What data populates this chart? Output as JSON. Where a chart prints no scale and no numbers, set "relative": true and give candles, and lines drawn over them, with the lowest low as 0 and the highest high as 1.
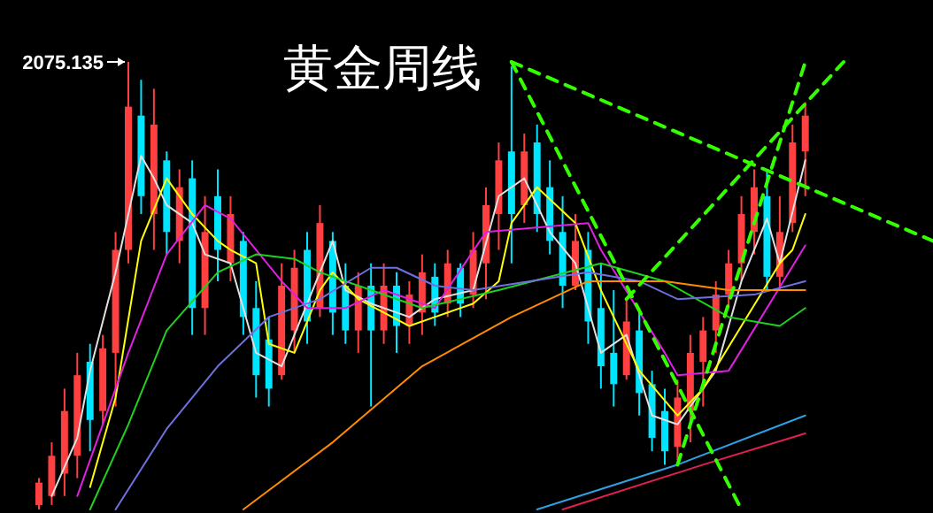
{
  "chart_data": {
    "type": "candlestick",
    "title": "黄金周线",
    "relative": true,
    "categories": [
      null,
      null,
      null,
      null,
      null,
      null,
      null,
      null,
      null,
      null,
      null,
      null,
      null,
      null,
      null,
      null,
      null,
      null,
      null,
      null,
      null,
      null,
      null,
      null,
      null,
      null,
      null,
      null,
      null,
      null,
      null,
      null,
      null,
      null,
      null,
      null,
      null,
      null,
      null,
      null,
      null,
      null,
      null,
      null,
      null,
      null,
      null,
      null,
      null,
      null,
      null,
      null,
      null,
      null,
      null,
      null,
      null,
      null,
      null,
      null,
      null,
      null,
      null,
      null,
      null,
      null,
      null,
      null,
      null,
      null,
      null
    ],
    "ohlc": [
      [
        0.01,
        0.07,
        0,
        0.06
      ],
      [
        0.03,
        0.15,
        0.01,
        0.12
      ],
      [
        0.08,
        0.27,
        0.03,
        0.22
      ],
      [
        0.12,
        0.35,
        0.07,
        0.3
      ],
      [
        0.33,
        0.37,
        0.13,
        0.2
      ],
      [
        0.22,
        0.39,
        0.19,
        0.36
      ],
      [
        0.35,
        0.62,
        0.23,
        0.58
      ],
      [
        0.58,
        1,
        0.55,
        0.9
      ],
      [
        0.88,
        0.96,
        0.66,
        0.7
      ],
      [
        0.66,
        0.94,
        0.58,
        0.86
      ],
      [
        0.78,
        0.8,
        0.57,
        0.62
      ],
      [
        0.6,
        0.76,
        0.55,
        0.72
      ],
      [
        0.74,
        0.78,
        0.39,
        0.45
      ],
      [
        0.45,
        0.7,
        0.39,
        0.62
      ],
      [
        0.7,
        0.76,
        0.51,
        0.58
      ],
      [
        0.55,
        0.7,
        0.51,
        0.66
      ],
      [
        0.6,
        0.62,
        0.39,
        0.43
      ],
      [
        0.45,
        0.51,
        0.25,
        0.3
      ],
      [
        0.38,
        0.43,
        0.23,
        0.27
      ],
      [
        0.3,
        0.55,
        0.29,
        0.5
      ],
      [
        0.4,
        0.58,
        0.35,
        0.54
      ],
      [
        0.58,
        0.62,
        0.37,
        0.42
      ],
      [
        0.45,
        0.68,
        0.43,
        0.64
      ],
      [
        0.6,
        0.62,
        0.39,
        0.44
      ],
      [
        0.5,
        0.55,
        0.37,
        0.4
      ],
      [
        0.4,
        0.53,
        0.35,
        0.5
      ],
      [
        0.5,
        0.55,
        0.23,
        0.4
      ],
      [
        0.4,
        0.55,
        0.37,
        0.5
      ],
      [
        0.5,
        0.53,
        0.35,
        0.41
      ],
      [
        0.41,
        0.51,
        0.37,
        0.48
      ],
      [
        0.44,
        0.57,
        0.39,
        0.53
      ],
      [
        0.52,
        0.55,
        0.41,
        0.44
      ],
      [
        0.46,
        0.58,
        0.43,
        0.55
      ],
      [
        0.54,
        0.55,
        0.43,
        0.46
      ],
      [
        0.48,
        0.62,
        0.45,
        0.58
      ],
      [
        0.55,
        0.72,
        0.47,
        0.68
      ],
      [
        0.66,
        0.82,
        0.58,
        0.78
      ],
      [
        0.8,
        0.99,
        0.55,
        0.66
      ],
      [
        0.68,
        0.84,
        0.64,
        0.8
      ],
      [
        0.82,
        0.86,
        0.62,
        0.66
      ],
      [
        0.72,
        0.78,
        0.57,
        0.6
      ],
      [
        0.62,
        0.7,
        0.45,
        0.5
      ],
      [
        0.5,
        0.66,
        0.49,
        0.6
      ],
      [
        0.58,
        0.62,
        0.37,
        0.42
      ],
      [
        0.45,
        0.55,
        0.27,
        0.32
      ],
      [
        0.35,
        0.49,
        0.23,
        0.28
      ],
      [
        0.3,
        0.47,
        0.29,
        0.42
      ],
      [
        0.4,
        0.45,
        0.21,
        0.26
      ],
      [
        0.28,
        0.31,
        0.13,
        0.16
      ],
      [
        0.22,
        0.27,
        0.1,
        0.13
      ],
      [
        0.14,
        0.29,
        0.11,
        0.25
      ],
      [
        0.22,
        0.39,
        0.15,
        0.35
      ],
      [
        0.33,
        0.43,
        0.23,
        0.4
      ],
      [
        0.4,
        0.51,
        0.35,
        0.48
      ],
      [
        0.48,
        0.58,
        0.45,
        0.55
      ],
      [
        0.55,
        0.7,
        0.51,
        0.66
      ],
      [
        0.62,
        0.76,
        0.57,
        0.72
      ],
      [
        0.7,
        0.76,
        0.49,
        0.52
      ],
      [
        0.52,
        0.7,
        0.49,
        0.62
      ],
      [
        0.64,
        0.86,
        0.62,
        0.82
      ],
      [
        0.8,
        0.91,
        0.7,
        0.88
      ],
      null,
      null,
      null,
      null,
      null,
      null,
      null,
      null,
      null,
      null
    ],
    "colors": [
      "#ff4040",
      "#ff4040",
      "#ff4040",
      "#ff4040",
      "#00e5ff",
      "#ff4040",
      "#ff4040",
      "#ff4040",
      "#00e5ff",
      "#ff4040",
      "#00e5ff",
      "#ff4040",
      "#00e5ff",
      "#ff4040",
      "#00e5ff",
      "#ff4040",
      "#00e5ff",
      "#00e5ff",
      "#00e5ff",
      "#ff4040",
      "#ff4040",
      "#00e5ff",
      "#ff4040",
      "#00e5ff",
      "#00e5ff",
      "#ff4040",
      "#00e5ff",
      "#ff4040",
      "#00e5ff",
      "#ff4040",
      "#ff4040",
      "#00e5ff",
      "#ff4040",
      "#00e5ff",
      "#ff4040",
      "#ff4040",
      "#ff4040",
      "#00e5ff",
      "#ff4040",
      "#00e5ff",
      "#00e5ff",
      "#00e5ff",
      "#ff4040",
      "#00e5ff",
      "#00e5ff",
      "#00e5ff",
      "#ff4040",
      "#00e5ff",
      "#00e5ff",
      "#00e5ff",
      "#ff4040",
      "#ff4040",
      "#ff4040",
      "#ff4040",
      "#ff4040",
      "#ff4040",
      "#ff4040",
      "#00e5ff",
      "#ff4040",
      "#ff4040",
      "#ff4040",
      null,
      null,
      null,
      null,
      null,
      null,
      null,
      null,
      null,
      null
    ],
    "series": [
      {
        "type": "line",
        "color": "#e0e0e0",
        "values": [
          null,
          0.03,
          null,
          0.16,
          0.31,
          null,
          0.53,
          null,
          0.79,
          0.74,
          0.68,
          null,
          0.64,
          0.57,
          null,
          0.55,
          null,
          0.35,
          null,
          0.32,
          0.39,
          null,
          null,
          0.6,
          0.49,
          null,
          0.46,
          null,
          null,
          0.43,
          null,
          0.47,
          null,
          null,
          0.49,
          null,
          0.7,
          null,
          0.74,
          null,
          0.62,
          null,
          0.55,
          null,
          0.35,
          null,
          0.39,
          null,
          0.21,
          null,
          0.19,
          null,
          null,
          0.31,
          null,
          0.51,
          null,
          0.65,
          0.55,
          null,
          0.78,
          null,
          null,
          null,
          null,
          null,
          null,
          null,
          null,
          null,
          null
        ]
      },
      {
        "type": "line",
        "color": "#ffff00",
        "values": [
          null,
          null,
          null,
          null,
          0.05,
          null,
          0.25,
          null,
          0.6,
          null,
          0.74,
          0.7,
          0.66,
          null,
          0.6,
          0.58,
          null,
          0.55,
          0.37,
          null,
          0.35,
          null,
          0.49,
          0.53,
          null,
          0.47,
          null,
          null,
          null,
          0.41,
          null,
          0.43,
          null,
          null,
          0.46,
          null,
          0.51,
          0.64,
          null,
          0.72,
          null,
          null,
          0.64,
          null,
          0.49,
          null,
          null,
          0.31,
          null,
          null,
          0.21,
          null,
          0.27,
          null,
          null,
          0.41,
          null,
          null,
          0.55,
          0.58,
          0.66,
          null,
          null,
          null,
          null,
          null,
          null,
          null,
          null,
          null,
          null
        ]
      },
      {
        "type": "line",
        "color": "#e020e0",
        "values": [
          null,
          null,
          null,
          0.03,
          null,
          null,
          null,
          0.35,
          null,
          null,
          0.57,
          null,
          null,
          0.68,
          null,
          0.65,
          null,
          null,
          null,
          0.51,
          null,
          0.45,
          null,
          null,
          0.45,
          null,
          null,
          0.49,
          null,
          null,
          null,
          0.45,
          null,
          null,
          null,
          0.62,
          null,
          null,
          null,
          null,
          null,
          null,
          null,
          0.64,
          0.58,
          null,
          null,
          null,
          null,
          0.35,
          0.3,
          null,
          null,
          null,
          0.31,
          null,
          null,
          null,
          null,
          null,
          0.59,
          null,
          null,
          null,
          null,
          null,
          null,
          null,
          null,
          null,
          null
        ]
      },
      {
        "type": "line",
        "color": "#20d020",
        "values": [
          null,
          null,
          null,
          null,
          0,
          null,
          null,
          0.19,
          null,
          null,
          0.4,
          null,
          null,
          null,
          0.53,
          null,
          null,
          0.57,
          null,
          null,
          0.56,
          null,
          0.53,
          null,
          null,
          null,
          0.49,
          null,
          null,
          null,
          0.45,
          null,
          null,
          null,
          null,
          null,
          0.49,
          null,
          null,
          null,
          null,
          null,
          null,
          null,
          0.55,
          null,
          null,
          null,
          null,
          0.51,
          null,
          null,
          null,
          null,
          0.43,
          null,
          null,
          null,
          0.41,
          null,
          0.45,
          null,
          null,
          null,
          null,
          null,
          null,
          null,
          null,
          null,
          null
        ]
      },
      {
        "type": "line",
        "color": "#7070e0",
        "values": [
          null,
          null,
          null,
          null,
          null,
          null,
          0,
          null,
          null,
          null,
          0.18,
          null,
          null,
          null,
          0.32,
          null,
          null,
          null,
          0.43,
          null,
          null,
          null,
          0.47,
          null,
          null,
          null,
          0.54,
          null,
          0.54,
          null,
          null,
          0.5,
          null,
          null,
          0.49,
          null,
          null,
          null,
          null,
          null,
          null,
          null,
          null,
          0.53,
          null,
          null,
          null,
          0.51,
          null,
          null,
          0.47,
          null,
          null,
          null,
          null,
          null,
          0.48,
          null,
          null,
          null,
          0.51,
          null,
          null,
          null,
          null,
          null,
          null,
          null,
          null,
          null,
          null
        ]
      },
      {
        "type": "line",
        "color": "#ff8c00",
        "values": [
          null,
          null,
          null,
          null,
          null,
          null,
          null,
          null,
          null,
          null,
          null,
          null,
          null,
          null,
          null,
          null,
          0,
          null,
          null,
          null,
          null,
          null,
          null,
          0.15,
          null,
          null,
          null,
          null,
          null,
          null,
          0.32,
          null,
          null,
          null,
          null,
          null,
          null,
          0.43,
          null,
          null,
          null,
          null,
          null,
          0.51,
          null,
          null,
          null,
          null,
          null,
          0.51,
          null,
          null,
          null,
          null,
          0.49,
          null,
          null,
          null,
          null,
          null,
          0.49,
          null,
          null,
          null,
          null,
          null,
          null,
          null,
          null,
          null,
          null
        ]
      },
      {
        "type": "line",
        "color": "#30a0e0",
        "values": [
          null,
          null,
          null,
          null,
          null,
          null,
          null,
          null,
          null,
          null,
          null,
          null,
          null,
          null,
          null,
          null,
          null,
          null,
          null,
          null,
          null,
          null,
          null,
          null,
          null,
          null,
          null,
          null,
          null,
          null,
          null,
          null,
          null,
          null,
          null,
          null,
          null,
          null,
          null,
          0,
          null,
          null,
          null,
          null,
          null,
          null,
          null,
          null,
          null,
          null,
          0.1,
          null,
          null,
          null,
          null,
          null,
          null,
          null,
          null,
          null,
          0.21,
          null,
          null,
          null,
          null,
          null,
          null,
          null,
          null,
          null,
          null
        ]
      },
      {
        "type": "line",
        "color": "#e02050",
        "values": [
          null,
          null,
          null,
          null,
          null,
          null,
          null,
          null,
          null,
          null,
          null,
          null,
          null,
          null,
          null,
          null,
          null,
          null,
          null,
          null,
          null,
          null,
          null,
          null,
          null,
          null,
          null,
          null,
          null,
          null,
          null,
          null,
          null,
          null,
          null,
          null,
          null,
          null,
          null,
          null,
          null,
          0,
          null,
          null,
          null,
          null,
          null,
          null,
          null,
          null,
          null,
          null,
          0.1,
          null,
          null,
          null,
          null,
          null,
          null,
          null,
          0.17,
          null,
          null,
          null,
          null,
          null,
          null,
          null,
          null,
          null,
          null
        ]
      },
      {
        "type": "line",
        "color": "#33ff00",
        "line_style": "dashed",
        "values": [
          null,
          null,
          null,
          null,
          null,
          null,
          null,
          null,
          null,
          null,
          null,
          null,
          null,
          null,
          null,
          null,
          null,
          null,
          null,
          null,
          null,
          null,
          null,
          null,
          null,
          null,
          null,
          null,
          null,
          null,
          null,
          null,
          null,
          null,
          null,
          null,
          null,
          1,
          null,
          null,
          null,
          null,
          null,
          null,
          null,
          null,
          null,
          null,
          null,
          null,
          null,
          null,
          null,
          null,
          null,
          null,
          null,
          null,
          null,
          null,
          null,
          null,
          null,
          null,
          null,
          null,
          null,
          null,
          null,
          null,
          0.6
        ]
      },
      {
        "type": "line",
        "color": "#33ff00",
        "line_style": "dashed",
        "values": [
          null,
          null,
          null,
          null,
          null,
          null,
          null,
          null,
          null,
          null,
          null,
          null,
          null,
          null,
          null,
          null,
          null,
          null,
          null,
          null,
          null,
          null,
          null,
          null,
          null,
          null,
          null,
          null,
          null,
          null,
          null,
          null,
          null,
          null,
          null,
          null,
          null,
          1,
          null,
          null,
          null,
          null,
          null,
          null,
          null,
          null,
          null,
          null,
          null,
          null,
          null,
          null,
          null,
          null,
          null,
          0,
          null,
          null,
          null,
          null,
          null,
          null,
          null,
          null,
          null,
          null,
          null,
          null,
          null,
          null,
          null
        ]
      },
      {
        "type": "line",
        "color": "#33ff00",
        "line_style": "dashed",
        "values": [
          null,
          null,
          null,
          null,
          null,
          null,
          null,
          null,
          null,
          null,
          null,
          null,
          null,
          null,
          null,
          null,
          null,
          null,
          null,
          null,
          null,
          null,
          null,
          null,
          null,
          null,
          null,
          null,
          null,
          null,
          null,
          null,
          null,
          null,
          null,
          null,
          null,
          null,
          null,
          null,
          null,
          null,
          null,
          null,
          null,
          null,
          null,
          null,
          null,
          null,
          0.1,
          null,
          null,
          null,
          null,
          null,
          null,
          null,
          null,
          null,
          1,
          null,
          null,
          null,
          null,
          null,
          null,
          null,
          null,
          null,
          null
        ]
      },
      {
        "type": "line",
        "color": "#33ff00",
        "line_style": "dashed",
        "values": [
          null,
          null,
          null,
          null,
          null,
          null,
          null,
          null,
          null,
          null,
          null,
          null,
          null,
          null,
          null,
          null,
          null,
          null,
          null,
          null,
          null,
          null,
          null,
          null,
          null,
          null,
          null,
          null,
          null,
          null,
          null,
          null,
          null,
          null,
          null,
          null,
          null,
          null,
          null,
          null,
          null,
          null,
          null,
          null,
          null,
          null,
          0.47,
          null,
          null,
          null,
          null,
          null,
          null,
          null,
          null,
          null,
          null,
          null,
          null,
          null,
          null,
          null,
          null,
          1,
          null,
          null,
          null,
          null,
          null,
          null,
          null
        ]
      }
    ],
    "annotations": [
      "2075.135"
    ]
  }
}
